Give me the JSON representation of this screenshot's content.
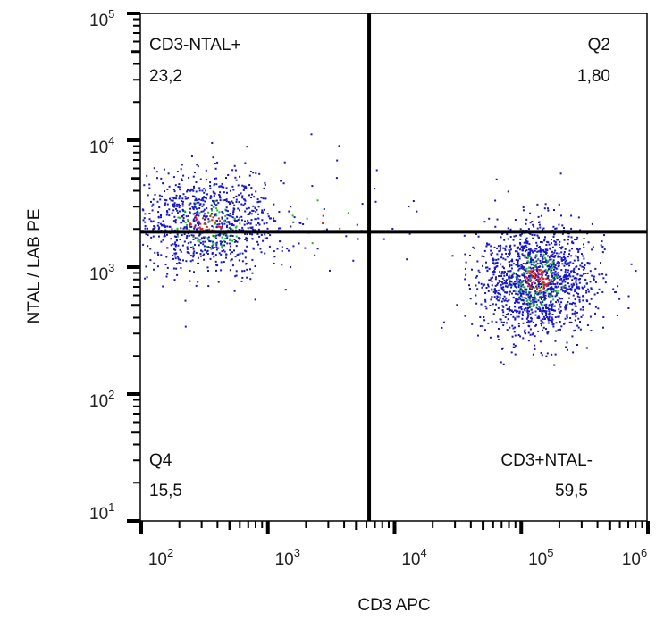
{
  "chart_data": {
    "type": "scatter",
    "subtype": "flow-cytometry-dot-plot-quadrant",
    "xlabel": "CD3 APC",
    "ylabel": "NTAL / LAB PE",
    "xscale": "log",
    "yscale": "log",
    "xlim": [
      100,
      1000000
    ],
    "ylim": [
      10,
      100000
    ],
    "x_tick_labels": [
      {
        "base": "10",
        "exp": "2",
        "value": 100
      },
      {
        "base": "10",
        "exp": "3",
        "value": 1000
      },
      {
        "base": "10",
        "exp": "4",
        "value": 10000
      },
      {
        "base": "10",
        "exp": "5",
        "value": 100000
      },
      {
        "base": "10",
        "exp": "6",
        "value": 1000000
      }
    ],
    "y_tick_labels": [
      {
        "base": "10",
        "exp": "1",
        "value": 10
      },
      {
        "base": "10",
        "exp": "2",
        "value": 100
      },
      {
        "base": "10",
        "exp": "3",
        "value": 1000
      },
      {
        "base": "10",
        "exp": "4",
        "value": 10000
      },
      {
        "base": "10",
        "exp": "5",
        "value": 100000
      }
    ],
    "gate": {
      "x": 6300,
      "y": 1900
    },
    "quadrants": [
      {
        "position": "top-left",
        "name": "CD3-NTAL+",
        "value": "23,2"
      },
      {
        "position": "top-right",
        "name": "Q2",
        "value": "1,80"
      },
      {
        "position": "bottom-left",
        "name": "Q4",
        "value": "15,5"
      },
      {
        "position": "bottom-right",
        "name": "CD3+NTAL-",
        "value": "59,5"
      }
    ],
    "populations": [
      {
        "center_x": 320,
        "center_y": 2200,
        "spread_x_decades": 0.28,
        "spread_y_decades": 0.2,
        "fraction": 0.38
      },
      {
        "center_x": 130000,
        "center_y": 800,
        "spread_x_decades": 0.22,
        "spread_y_decades": 0.22,
        "fraction": 0.6
      },
      {
        "center_x": 3000,
        "center_y": 2500,
        "spread_x_decades": 0.4,
        "spread_y_decades": 0.25,
        "fraction": 0.02
      }
    ],
    "density_colors": [
      "#1616c8",
      "#28b428",
      "#e02020"
    ],
    "grid": false,
    "legend": "none"
  }
}
